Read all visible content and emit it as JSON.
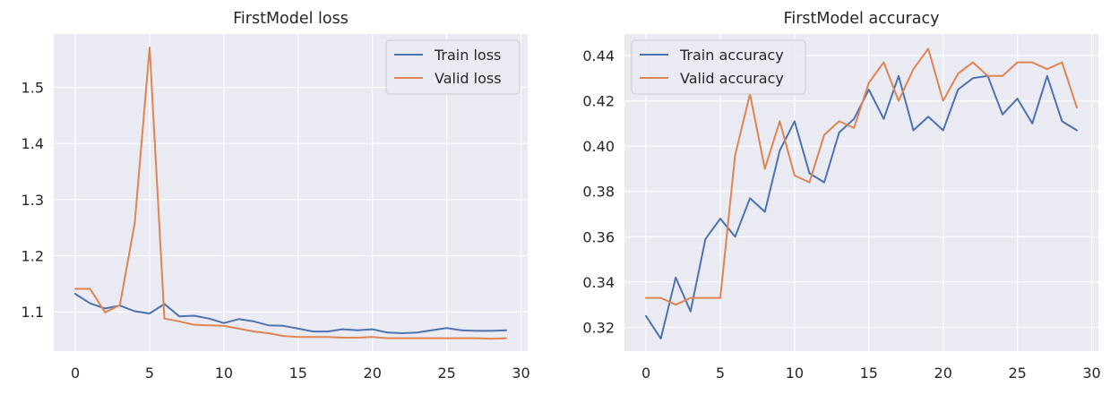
{
  "chart_data": [
    {
      "type": "line",
      "title": "FirstModel loss",
      "xlabel": "",
      "ylabel": "",
      "xlim": [
        -1.45,
        30.45
      ],
      "ylim": [
        1.03,
        1.595
      ],
      "xticks": [
        0,
        5,
        10,
        15,
        20,
        25,
        30
      ],
      "yticks": [
        1.1,
        1.2,
        1.3,
        1.4,
        1.5
      ],
      "ytick_decimals": 1,
      "grid": true,
      "legend": "top-right",
      "x": [
        0,
        1,
        2,
        3,
        4,
        5,
        6,
        7,
        8,
        9,
        10,
        11,
        12,
        13,
        14,
        15,
        16,
        17,
        18,
        19,
        20,
        21,
        22,
        23,
        24,
        25,
        26,
        27,
        28,
        29
      ],
      "series": [
        {
          "name": "Train loss",
          "color": "#4c72b0",
          "values": [
            1.132,
            1.115,
            1.106,
            1.111,
            1.101,
            1.097,
            1.114,
            1.092,
            1.093,
            1.088,
            1.08,
            1.087,
            1.083,
            1.076,
            1.075,
            1.07,
            1.065,
            1.065,
            1.069,
            1.067,
            1.069,
            1.063,
            1.062,
            1.063,
            1.067,
            1.071,
            1.067,
            1.066,
            1.066,
            1.067
          ]
        },
        {
          "name": "Valid loss",
          "color": "#dd8452",
          "values": [
            1.141,
            1.141,
            1.099,
            1.112,
            1.258,
            1.571,
            1.088,
            1.083,
            1.077,
            1.076,
            1.075,
            1.07,
            1.065,
            1.062,
            1.057,
            1.055,
            1.055,
            1.055,
            1.054,
            1.054,
            1.055,
            1.053,
            1.053,
            1.053,
            1.053,
            1.053,
            1.053,
            1.053,
            1.052,
            1.053
          ]
        }
      ]
    },
    {
      "type": "line",
      "title": "FirstModel accuracy",
      "xlabel": "",
      "ylabel": "",
      "xlim": [
        -1.45,
        30.45
      ],
      "ylim": [
        0.3095,
        0.4495
      ],
      "xticks": [
        0,
        5,
        10,
        15,
        20,
        25,
        30
      ],
      "yticks": [
        0.32,
        0.34,
        0.36,
        0.38,
        0.4,
        0.42,
        0.44
      ],
      "ytick_decimals": 2,
      "grid": true,
      "legend": "top-left",
      "x": [
        0,
        1,
        2,
        3,
        4,
        5,
        6,
        7,
        8,
        9,
        10,
        11,
        12,
        13,
        14,
        15,
        16,
        17,
        18,
        19,
        20,
        21,
        22,
        23,
        24,
        25,
        26,
        27,
        28,
        29
      ],
      "series": [
        {
          "name": "Train accuracy",
          "color": "#4c72b0",
          "values": [
            0.325,
            0.315,
            0.342,
            0.327,
            0.359,
            0.368,
            0.36,
            0.377,
            0.371,
            0.398,
            0.411,
            0.388,
            0.384,
            0.406,
            0.412,
            0.425,
            0.412,
            0.431,
            0.407,
            0.413,
            0.407,
            0.425,
            0.43,
            0.431,
            0.414,
            0.421,
            0.41,
            0.431,
            0.411,
            0.407
          ]
        },
        {
          "name": "Valid accuracy",
          "color": "#dd8452",
          "values": [
            0.333,
            0.333,
            0.33,
            0.333,
            0.333,
            0.333,
            0.396,
            0.423,
            0.39,
            0.411,
            0.387,
            0.384,
            0.405,
            0.411,
            0.408,
            0.428,
            0.437,
            0.42,
            0.434,
            0.443,
            0.42,
            0.432,
            0.437,
            0.431,
            0.431,
            0.437,
            0.437,
            0.434,
            0.437,
            0.417
          ]
        }
      ]
    }
  ]
}
